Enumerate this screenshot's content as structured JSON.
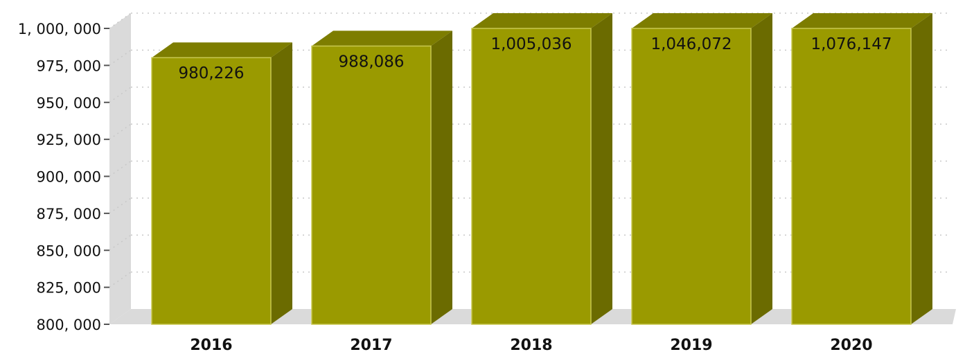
{
  "chart_data": {
    "type": "bar",
    "style": "3d",
    "title": "",
    "xlabel": "",
    "ylabel": "",
    "categories": [
      "2016",
      "2017",
      "2018",
      "2019",
      "2020"
    ],
    "values": [
      980226,
      988086,
      1005036,
      1046072,
      1076147
    ],
    "data_labels": [
      "980,226",
      "988,086",
      "1,005,036",
      "1,046,072",
      "1,076,147"
    ],
    "ylim": [
      800000,
      1000000
    ],
    "yticks": [
      800000,
      825000,
      850000,
      875000,
      900000,
      925000,
      950000,
      975000,
      1000000
    ],
    "ytick_labels": [
      "800, 000",
      "825, 000",
      "850, 000",
      "875, 000",
      "900, 000",
      "925, 000",
      "950, 000",
      "975, 000",
      "1, 000, 000"
    ],
    "grid": true,
    "legend": "none",
    "colors": {
      "bar_front": "#9a9a00",
      "bar_side": "#6b6b00",
      "bar_top": "#7d7d00",
      "bar_edge": "#c8c850",
      "wall": "#dadada",
      "grid": "#c8c8c8"
    }
  }
}
